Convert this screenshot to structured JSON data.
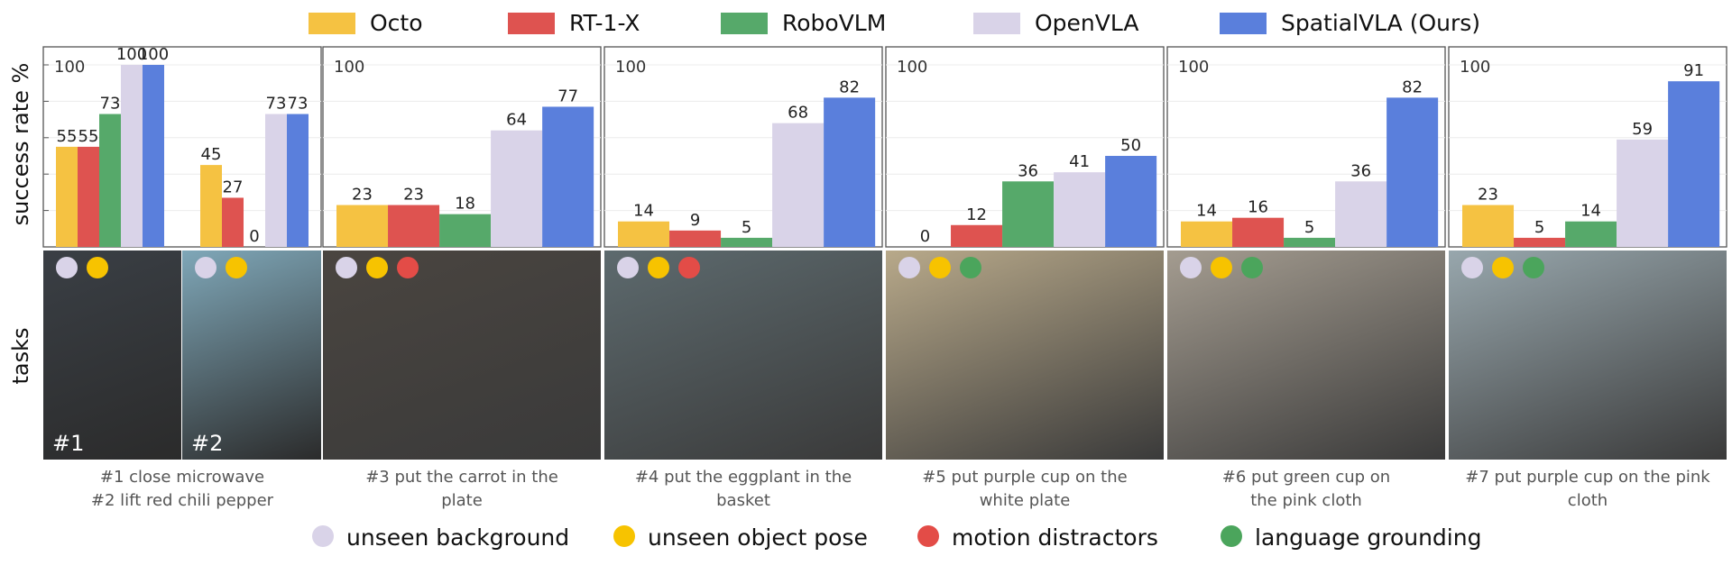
{
  "legend": {
    "series": [
      {
        "name": "Octo",
        "color": "#f5c242"
      },
      {
        "name": "RT-1-X",
        "color": "#de5350"
      },
      {
        "name": "RoboVLM",
        "color": "#56a96a"
      },
      {
        "name": "OpenVLA",
        "color": "#d9d3e8"
      },
      {
        "name": "SpatialVLA (Ours)",
        "color": "#5a7fdc"
      }
    ]
  },
  "axis": {
    "ylabel": "success rate %",
    "tasks_label": "tasks"
  },
  "chart_data": [
    {
      "type": "bar",
      "ylim": [
        0,
        100
      ],
      "ytick_label": "100",
      "series_names": [
        "Octo",
        "RT-1-X",
        "RoboVLM",
        "OpenVLA",
        "SpatialVLA (Ours)"
      ],
      "groups": [
        {
          "task": "#1",
          "values": [
            55,
            55,
            73,
            100,
            100
          ]
        },
        {
          "task": "#2",
          "values": [
            45,
            27,
            0,
            73,
            73
          ]
        }
      ]
    },
    {
      "type": "bar",
      "ylim": [
        0,
        100
      ],
      "ytick_label": "100",
      "series_names": [
        "Octo",
        "RT-1-X",
        "RoboVLM",
        "OpenVLA",
        "SpatialVLA (Ours)"
      ],
      "groups": [
        {
          "task": "#3",
          "values": [
            23,
            23,
            18,
            64,
            77
          ]
        }
      ]
    },
    {
      "type": "bar",
      "ylim": [
        0,
        100
      ],
      "ytick_label": "100",
      "series_names": [
        "Octo",
        "RT-1-X",
        "RoboVLM",
        "OpenVLA",
        "SpatialVLA (Ours)"
      ],
      "groups": [
        {
          "task": "#4",
          "values": [
            14,
            9,
            5,
            68,
            82
          ]
        }
      ]
    },
    {
      "type": "bar",
      "ylim": [
        0,
        100
      ],
      "ytick_label": "100",
      "series_names": [
        "Octo",
        "RT-1-X",
        "RoboVLM",
        "OpenVLA",
        "SpatialVLA (Ours)"
      ],
      "groups": [
        {
          "task": "#5",
          "values": [
            0,
            12,
            36,
            41,
            50
          ]
        }
      ]
    },
    {
      "type": "bar",
      "ylim": [
        0,
        100
      ],
      "ytick_label": "100",
      "series_names": [
        "Octo",
        "RT-1-X",
        "RoboVLM",
        "OpenVLA",
        "SpatialVLA (Ours)"
      ],
      "groups": [
        {
          "task": "#6",
          "values": [
            14,
            16,
            5,
            36,
            82
          ]
        }
      ]
    },
    {
      "type": "bar",
      "ylim": [
        0,
        100
      ],
      "ytick_label": "100",
      "series_names": [
        "Octo",
        "RT-1-X",
        "RoboVLM",
        "OpenVLA",
        "SpatialVLA (Ours)"
      ],
      "groups": [
        {
          "task": "#7",
          "values": [
            23,
            5,
            14,
            59,
            91
          ]
        }
      ]
    }
  ],
  "photos": [
    {
      "halves": [
        {
          "tag": "#1",
          "bg": "#3a3f45",
          "dots": [
            "unseen_background",
            "unseen_object_pose"
          ]
        },
        {
          "tag": "#2",
          "bg": "#7fa7b8",
          "dots": [
            "unseen_background",
            "unseen_object_pose"
          ]
        }
      ]
    },
    {
      "bg": "#4a4540",
      "dots": [
        "unseen_background",
        "unseen_object_pose",
        "motion_distractors"
      ]
    },
    {
      "bg": "#5d6a6e",
      "dots": [
        "unseen_background",
        "unseen_object_pose",
        "motion_distractors"
      ]
    },
    {
      "bg": "#b8a98a",
      "dots": [
        "unseen_background",
        "unseen_object_pose",
        "language_grounding"
      ]
    },
    {
      "bg": "#a49c90",
      "dots": [
        "unseen_background",
        "unseen_object_pose",
        "language_grounding"
      ]
    },
    {
      "bg": "#98a7ad",
      "dots": [
        "unseen_background",
        "unseen_object_pose",
        "language_grounding"
      ]
    }
  ],
  "captions": [
    {
      "line1": "#1 close microwave",
      "line2": "#2 lift red chili pepper"
    },
    {
      "line1": "#3 put the carrot in the",
      "line2": "plate"
    },
    {
      "line1": "#4 put the eggplant in the",
      "line2": "basket"
    },
    {
      "line1": "#5 put purple cup on the",
      "line2": "white plate"
    },
    {
      "line1": "#6 put green cup on",
      "line2": "the pink cloth"
    },
    {
      "line1": "#7 put purple cup on the pink",
      "line2": "cloth"
    }
  ],
  "conditions": [
    {
      "key": "unseen_background",
      "label": "unseen background",
      "color": "#d9d3e8"
    },
    {
      "key": "unseen_object_pose",
      "label": "unseen object pose",
      "color": "#f7c300"
    },
    {
      "key": "motion_distractors",
      "label": "motion distractors",
      "color": "#e34c47"
    },
    {
      "key": "language_grounding",
      "label": "language grounding",
      "color": "#4ba55c"
    }
  ]
}
